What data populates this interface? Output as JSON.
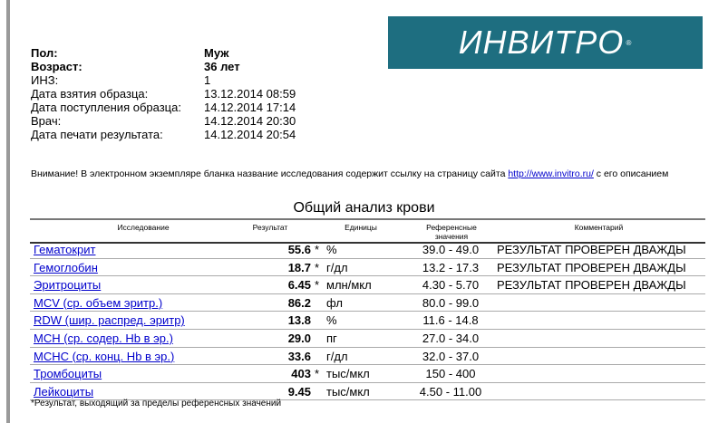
{
  "patient": [
    {
      "label": "Пол:",
      "value": "Муж",
      "bold": true
    },
    {
      "label": "Возраст:",
      "value": "36 лет",
      "bold": true
    },
    {
      "label": "ИНЗ:",
      "value": "1"
    },
    {
      "label": "Дата взятия образца:",
      "value": "13.12.2014 08:59"
    },
    {
      "label": "Дата поступления образца:",
      "value": "14.12.2014 17:14"
    },
    {
      "label": "Врач:",
      "value": "14.12.2014 20:30"
    },
    {
      "label": "Дата печати результата:",
      "value": "14.12.2014 20:54"
    }
  ],
  "logo": {
    "text": "ИНВИТРО",
    "mark": "®",
    "color": "#1e6e80"
  },
  "notice": {
    "before": "Внимание! В электронном экземпляре бланка название исследования содержит ссылку на страницу сайта ",
    "link": "http://www.invitro.ru/",
    "after": " с его описанием"
  },
  "table": {
    "title": "Общий анализ крови",
    "headers": {
      "test": "Исследование",
      "result": "Результат",
      "units": "Единицы",
      "ref1": "Референсные",
      "ref2": "значения",
      "comment": "Комментарий"
    },
    "rows": [
      {
        "name": "Гематокрит",
        "result": "55.6",
        "flag": "*",
        "units": "%",
        "ref": "39.0 - 49.0",
        "comment": "РЕЗУЛЬТАТ ПРОВЕРЕН ДВАЖДЫ"
      },
      {
        "name": "Гемоглобин",
        "result": "18.7",
        "flag": "*",
        "units": "г/дл",
        "ref": "13.2 - 17.3",
        "comment": "РЕЗУЛЬТАТ ПРОВЕРЕН ДВАЖДЫ"
      },
      {
        "name": "Эритроциты",
        "result": "6.45",
        "flag": "*",
        "units": "млн/мкл",
        "ref": "4.30 - 5.70",
        "comment": "РЕЗУЛЬТАТ ПРОВЕРЕН ДВАЖДЫ"
      },
      {
        "name": "MCV (ср. объем эритр.)",
        "result": "86.2",
        "flag": "",
        "units": "фл",
        "ref": "80.0 - 99.0",
        "comment": ""
      },
      {
        "name": "RDW (шир. распред. эритр)",
        "result": "13.8",
        "flag": "",
        "units": "%",
        "ref": "11.6 - 14.8",
        "comment": ""
      },
      {
        "name": "MCH (ср. содер. Hb в эр.)",
        "result": "29.0",
        "flag": "",
        "units": "пг",
        "ref": "27.0 - 34.0",
        "comment": ""
      },
      {
        "name": "MCHC (ср. конц. Hb в эр.)",
        "result": "33.6",
        "flag": "",
        "units": "г/дл",
        "ref": "32.0 - 37.0",
        "comment": ""
      },
      {
        "name": "Тромбоциты",
        "result": "403",
        "flag": "*",
        "units": "тыс/мкл",
        "ref": "150 - 400",
        "comment": ""
      },
      {
        "name": "Лейкоциты",
        "result": "9.45",
        "flag": "",
        "units": "тыс/мкл",
        "ref": "4.50 - 11.00",
        "comment": ""
      }
    ]
  },
  "footnote": "*Результат, выходящий за пределы референсных значений"
}
